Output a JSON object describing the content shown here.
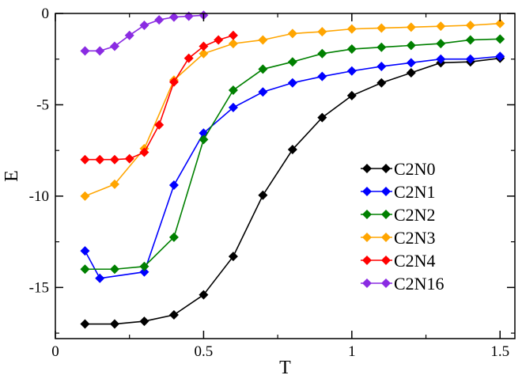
{
  "chart_data": {
    "type": "line",
    "title": "",
    "xlabel": "T",
    "ylabel": "E",
    "xlim": [
      0,
      1.55
    ],
    "ylim": [
      -17.8,
      0
    ],
    "grid": false,
    "legend_position": "right-center",
    "x_ticks": [
      {
        "value": 0,
        "label": "0"
      },
      {
        "value": 0.5,
        "label": "0.5"
      },
      {
        "value": 1,
        "label": "1"
      },
      {
        "value": 1.5,
        "label": "1.5"
      }
    ],
    "y_ticks": [
      {
        "value": 0,
        "label": "0"
      },
      {
        "value": -5,
        "label": "-5"
      },
      {
        "value": -10,
        "label": "-10"
      },
      {
        "value": -15,
        "label": "-15"
      }
    ],
    "series": [
      {
        "name": "C2N0",
        "color": "#000000",
        "x": [
          0.1,
          0.2,
          0.3,
          0.4,
          0.5,
          0.6,
          0.7,
          0.8,
          0.9,
          1.0,
          1.1,
          1.2,
          1.3,
          1.4,
          1.5
        ],
        "y": [
          -17.0,
          -17.0,
          -16.85,
          -16.5,
          -15.4,
          -13.3,
          -9.95,
          -7.45,
          -5.7,
          -4.5,
          -3.8,
          -3.25,
          -2.7,
          -2.65,
          -2.45
        ]
      },
      {
        "name": "C2N1",
        "color": "#0000ff",
        "x": [
          0.1,
          0.15,
          0.3,
          0.4,
          0.5,
          0.6,
          0.7,
          0.8,
          0.9,
          1.0,
          1.1,
          1.2,
          1.3,
          1.4,
          1.5
        ],
        "y": [
          -13.0,
          -14.5,
          -14.15,
          -9.4,
          -6.55,
          -5.15,
          -4.3,
          -3.8,
          -3.45,
          -3.15,
          -2.9,
          -2.7,
          -2.5,
          -2.5,
          -2.35
        ]
      },
      {
        "name": "C2N2",
        "color": "#008000",
        "x": [
          0.1,
          0.2,
          0.3,
          0.4,
          0.5,
          0.6,
          0.7,
          0.8,
          0.9,
          1.0,
          1.1,
          1.2,
          1.3,
          1.4,
          1.5
        ],
        "y": [
          -14.0,
          -14.0,
          -13.85,
          -12.25,
          -6.9,
          -4.2,
          -3.05,
          -2.65,
          -2.2,
          -1.95,
          -1.85,
          -1.75,
          -1.65,
          -1.45,
          -1.4
        ]
      },
      {
        "name": "C2N3",
        "color": "#ffa500",
        "x": [
          0.1,
          0.2,
          0.3,
          0.4,
          0.5,
          0.6,
          0.7,
          0.8,
          0.9,
          1.0,
          1.1,
          1.2,
          1.3,
          1.4,
          1.5
        ],
        "y": [
          -10.0,
          -9.35,
          -7.4,
          -3.65,
          -2.2,
          -1.65,
          -1.45,
          -1.1,
          -1.0,
          -0.85,
          -0.8,
          -0.75,
          -0.7,
          -0.65,
          -0.55
        ]
      },
      {
        "name": "C2N4",
        "color": "#ff0000",
        "x": [
          0.1,
          0.15,
          0.2,
          0.25,
          0.3,
          0.35,
          0.4,
          0.45,
          0.5,
          0.55,
          0.6
        ],
        "y": [
          -8.0,
          -8.0,
          -8.0,
          -7.95,
          -7.6,
          -6.1,
          -3.75,
          -2.45,
          -1.8,
          -1.45,
          -1.2
        ]
      },
      {
        "name": "C2N16",
        "color": "#8a2be2",
        "x": [
          0.1,
          0.15,
          0.2,
          0.25,
          0.3,
          0.35,
          0.4,
          0.45,
          0.5
        ],
        "y": [
          -2.05,
          -2.05,
          -1.8,
          -1.2,
          -0.65,
          -0.35,
          -0.2,
          -0.15,
          -0.1
        ]
      }
    ]
  }
}
